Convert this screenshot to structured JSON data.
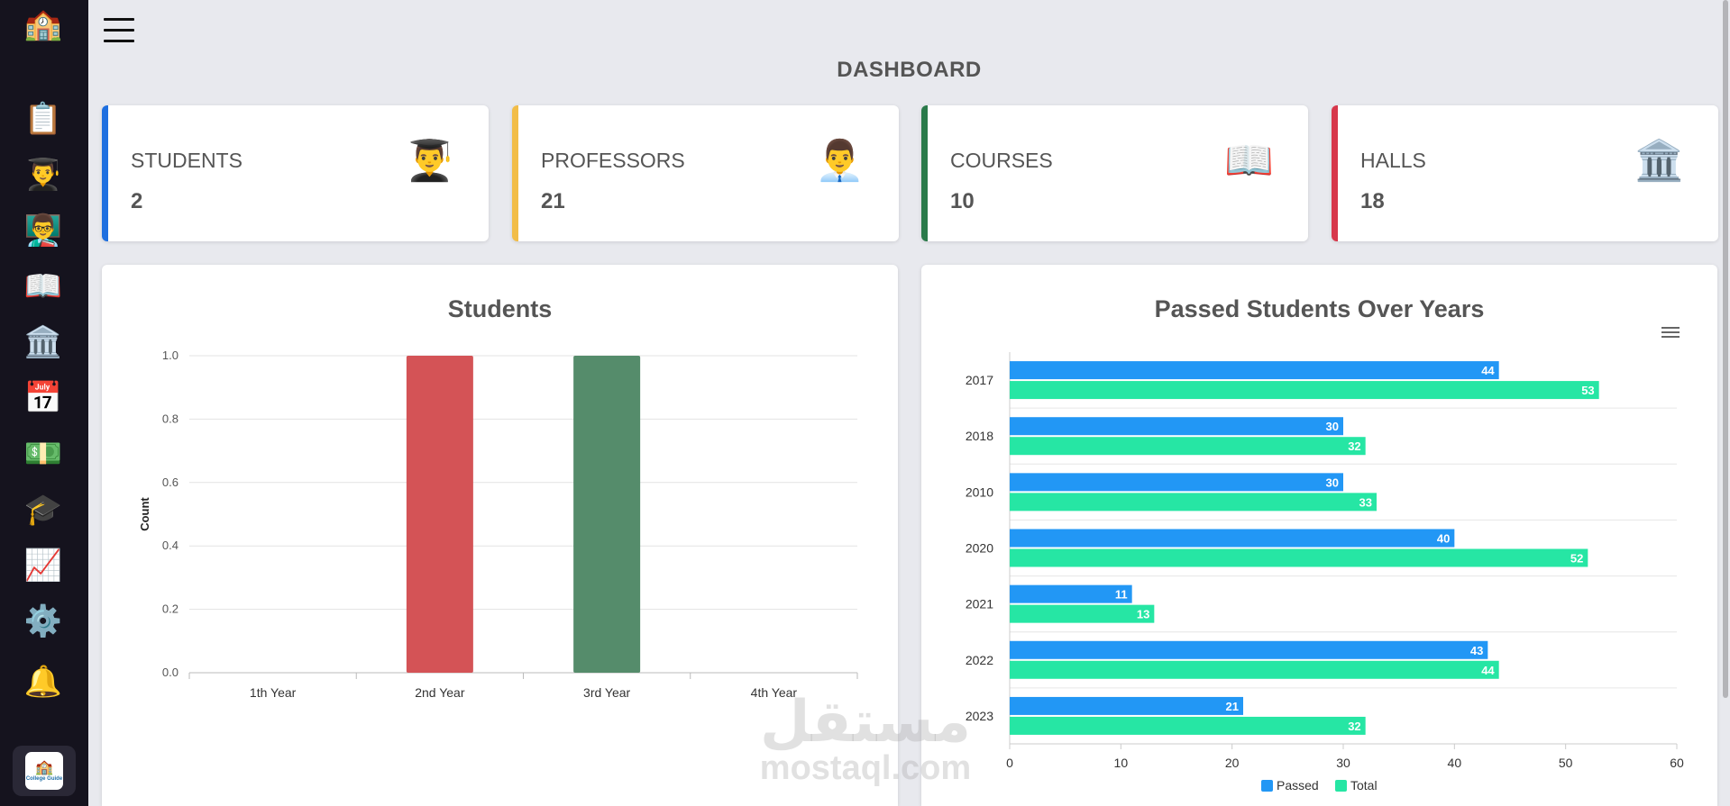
{
  "sidebar": {
    "items": [
      {
        "icon": "school-building-icon",
        "glyph": "🏫"
      },
      {
        "icon": "clipboard-icon",
        "glyph": "📋"
      },
      {
        "icon": "student-icon",
        "glyph": "👨‍🎓"
      },
      {
        "icon": "teacher-icon",
        "glyph": "👨‍🏫"
      },
      {
        "icon": "open-book-icon",
        "glyph": "📖"
      },
      {
        "icon": "classical-building-icon",
        "glyph": "🏛️"
      },
      {
        "icon": "calendar-icon",
        "glyph": "📅"
      },
      {
        "icon": "money-icon",
        "glyph": "💵"
      },
      {
        "icon": "graduation-cap-icon",
        "glyph": "🎓"
      },
      {
        "icon": "chart-increasing-icon",
        "glyph": "📈"
      },
      {
        "icon": "gear-icon",
        "glyph": "⚙️"
      },
      {
        "icon": "bell-icon",
        "glyph": "🔔"
      }
    ],
    "logo_text": "College Guide"
  },
  "header": {
    "title": "DASHBOARD"
  },
  "stats": [
    {
      "label": "STUDENTS",
      "value": "2",
      "color": "#1e6fe0",
      "icon": "student-icon",
      "glyph": "👨‍🎓"
    },
    {
      "label": "PROFESSORS",
      "value": "21",
      "color": "#f2bd48",
      "icon": "professor-icon",
      "glyph": "👨‍💼"
    },
    {
      "label": "COURSES",
      "value": "10",
      "color": "#2a7a4a",
      "icon": "open-book-icon",
      "glyph": "📖"
    },
    {
      "label": "HALLS",
      "value": "18",
      "color": "#d7374b",
      "icon": "classical-building-icon",
      "glyph": "🏛️"
    }
  ],
  "chart_data": [
    {
      "type": "bar",
      "title": "Students",
      "xlabel": "",
      "ylabel": "Count",
      "categories": [
        "1th Year",
        "2nd Year",
        "3rd Year",
        "4th Year"
      ],
      "values": [
        0,
        1,
        1,
        0
      ],
      "colors": [
        "#1e6fe0",
        "#d45356",
        "#558c6b",
        "#f2bd48"
      ],
      "ylim": [
        0,
        1
      ],
      "yticks": [
        "0.0",
        "0.2",
        "0.4",
        "0.6",
        "0.8",
        "1.0"
      ],
      "grid": true
    },
    {
      "type": "bar",
      "orientation": "horizontal",
      "title": "Passed Students Over Years",
      "categories": [
        "2017",
        "2018",
        "2010",
        "2020",
        "2021",
        "2022",
        "2023"
      ],
      "series": [
        {
          "name": "Passed",
          "values": [
            44,
            30,
            30,
            40,
            11,
            43,
            21
          ],
          "color": "#2297f5"
        },
        {
          "name": "Total",
          "values": [
            53,
            32,
            33,
            52,
            13,
            44,
            32
          ],
          "color": "#26e6a4"
        }
      ],
      "xlim": [
        0,
        60
      ],
      "xticks": [
        "0",
        "10",
        "20",
        "30",
        "40",
        "50",
        "60"
      ],
      "legend": "bottom",
      "grid": true
    }
  ],
  "watermark": {
    "arabic": "مستقل",
    "latin": "mostaql.com"
  }
}
